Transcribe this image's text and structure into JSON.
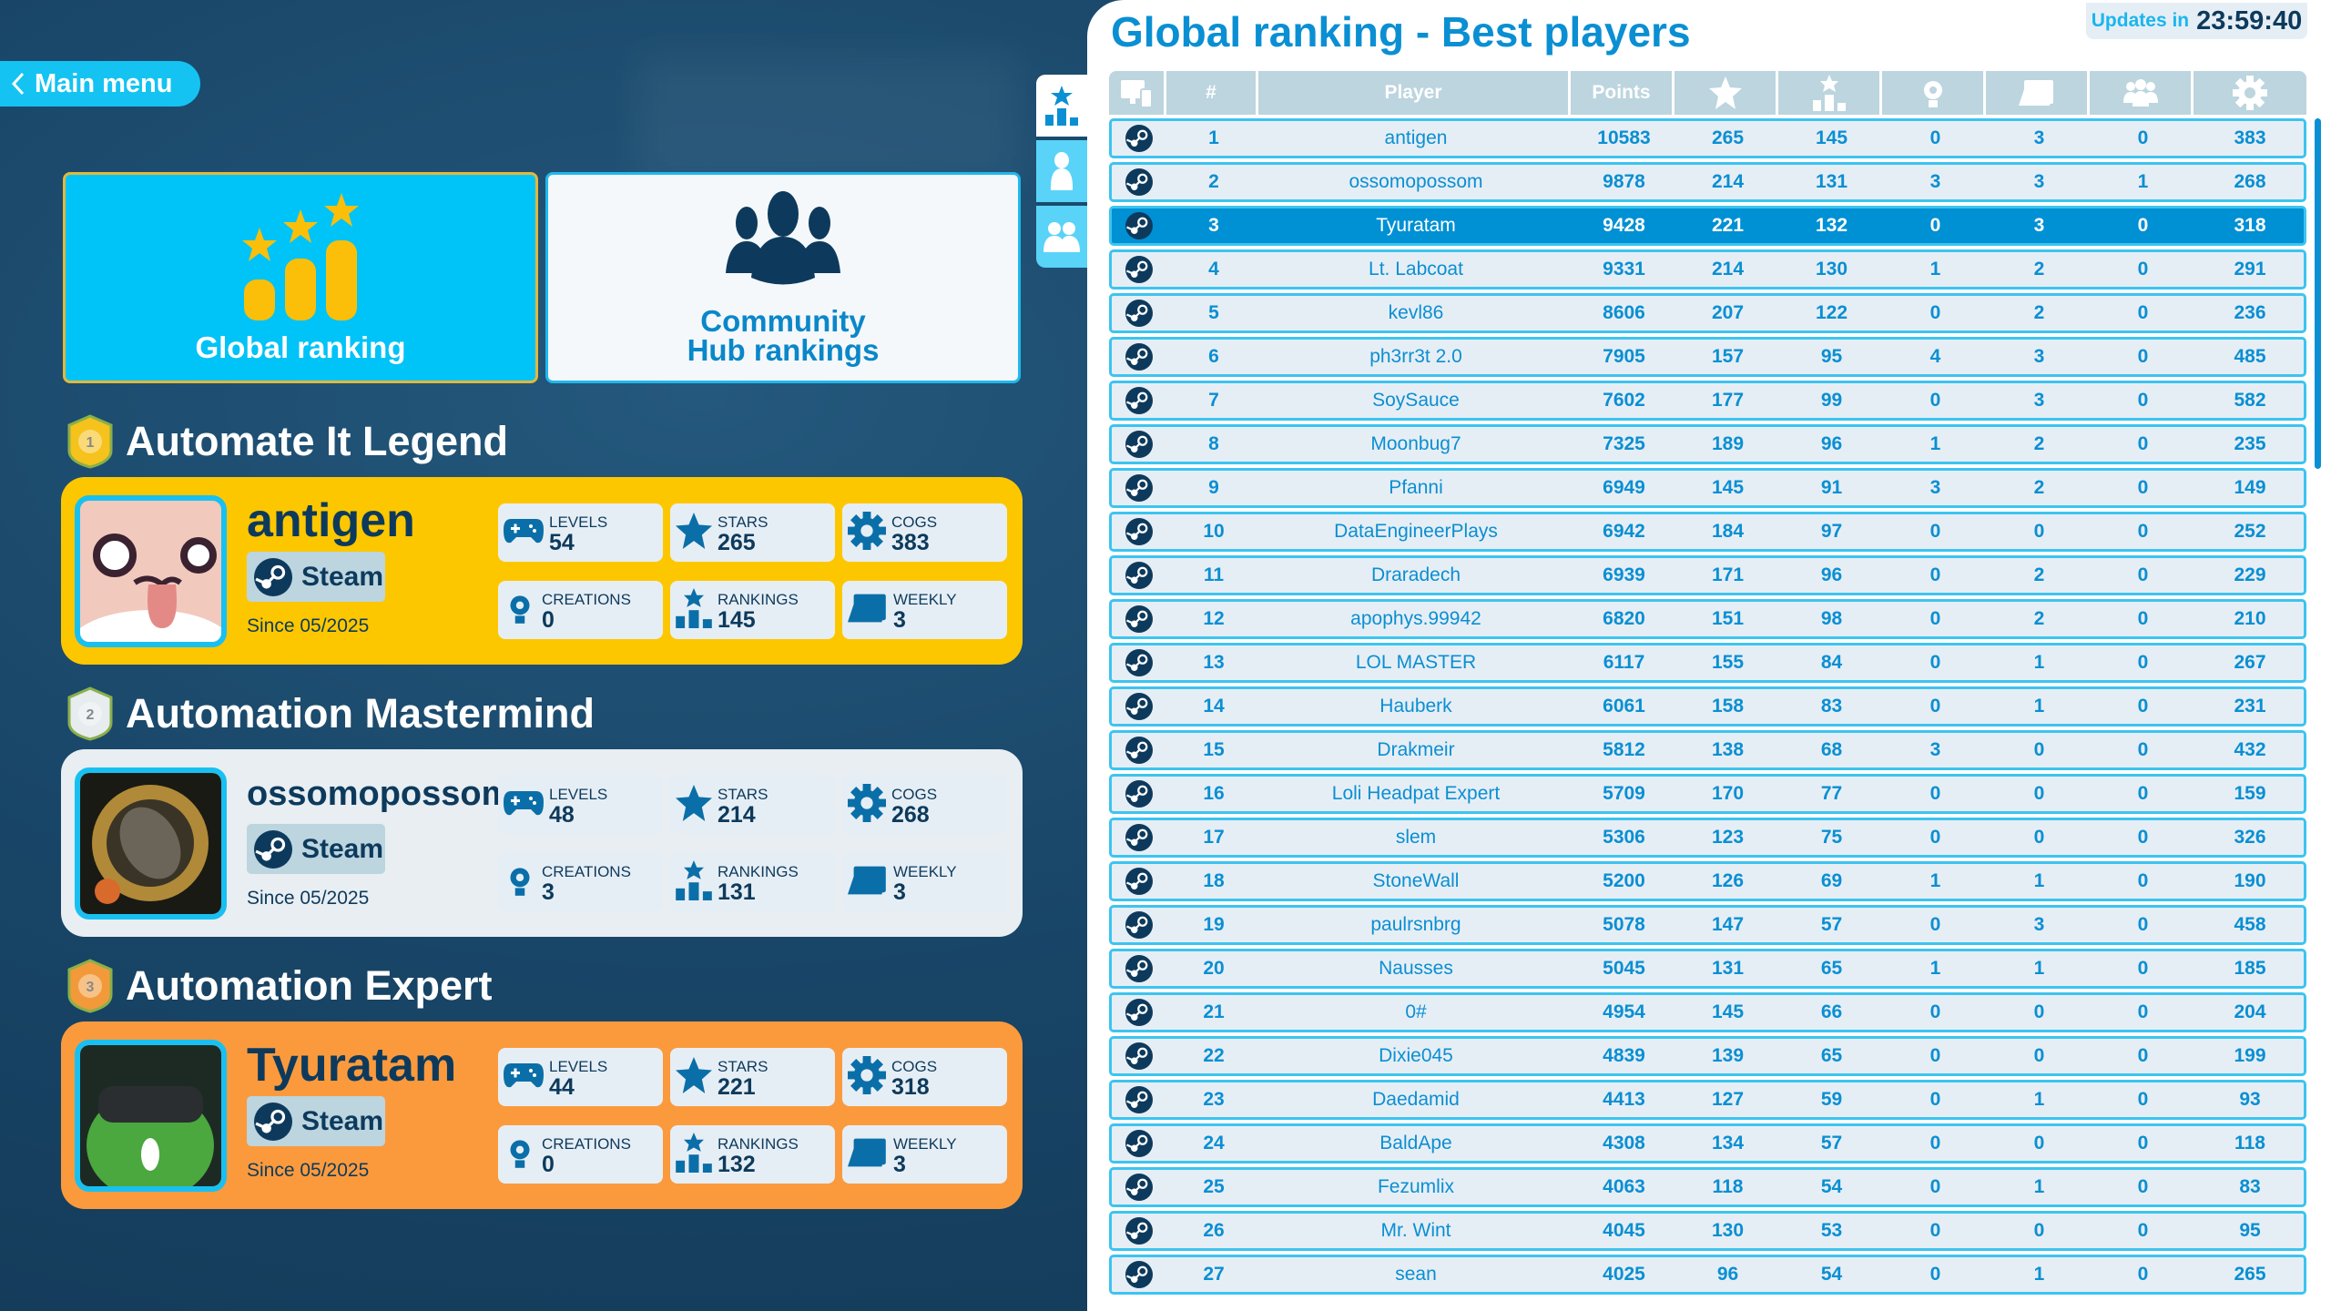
{
  "nav": {
    "main_menu": "Main menu"
  },
  "modes": {
    "global": "Global ranking",
    "community_line1": "Community",
    "community_line2": "Hub rankings"
  },
  "stat_labels": {
    "levels": "LEVELS",
    "stars": "STARS",
    "cogs": "COGS",
    "creations": "CREATIONS",
    "rankings": "RANKINGS",
    "weekly": "WEEKLY"
  },
  "podium": [
    {
      "tier": "Automate It Legend",
      "medal": "1",
      "name": "antigen",
      "platform": "Steam",
      "since": "Since 05/2025",
      "levels": "54",
      "stars": "265",
      "cogs": "383",
      "creations": "0",
      "rankings": "145",
      "weekly": "3",
      "color": "#fdc700"
    },
    {
      "tier": "Automation Mastermind",
      "medal": "2",
      "name": "ossomopossom",
      "platform": "Steam",
      "since": "Since 05/2025",
      "levels": "48",
      "stars": "214",
      "cogs": "268",
      "creations": "3",
      "rankings": "131",
      "weekly": "3",
      "color": "#e8eef2"
    },
    {
      "tier": "Automation Expert",
      "medal": "3",
      "name": "Tyuratam",
      "platform": "Steam",
      "since": "Since 05/2025",
      "levels": "44",
      "stars": "221",
      "cogs": "318",
      "creations": "0",
      "rankings": "132",
      "weekly": "3",
      "color": "#fb9a3d"
    }
  ],
  "panel": {
    "title": "Global ranking - Best players",
    "updates_label": "Updates in",
    "countdown": "23:59:40"
  },
  "table": {
    "headers": {
      "rank": "#",
      "player": "Player",
      "points": "Points"
    },
    "highlight_rank": 3,
    "rows": [
      [
        "1",
        "antigen",
        "10583",
        "265",
        "145",
        "0",
        "3",
        "0",
        "383"
      ],
      [
        "2",
        "ossomopossom",
        "9878",
        "214",
        "131",
        "3",
        "3",
        "1",
        "268"
      ],
      [
        "3",
        "Tyuratam",
        "9428",
        "221",
        "132",
        "0",
        "3",
        "0",
        "318"
      ],
      [
        "4",
        "Lt. Labcoat",
        "9331",
        "214",
        "130",
        "1",
        "2",
        "0",
        "291"
      ],
      [
        "5",
        "kevl86",
        "8606",
        "207",
        "122",
        "0",
        "2",
        "0",
        "236"
      ],
      [
        "6",
        "ph3rr3t 2.0",
        "7905",
        "157",
        "95",
        "4",
        "3",
        "0",
        "485"
      ],
      [
        "7",
        "SoySauce",
        "7602",
        "177",
        "99",
        "0",
        "3",
        "0",
        "582"
      ],
      [
        "8",
        "Moonbug7",
        "7325",
        "189",
        "96",
        "1",
        "2",
        "0",
        "235"
      ],
      [
        "9",
        "Pfanni",
        "6949",
        "145",
        "91",
        "3",
        "2",
        "0",
        "149"
      ],
      [
        "10",
        "DataEngineerPlays",
        "6942",
        "184",
        "97",
        "0",
        "0",
        "0",
        "252"
      ],
      [
        "11",
        "Draradech",
        "6939",
        "171",
        "96",
        "0",
        "2",
        "0",
        "229"
      ],
      [
        "12",
        "apophys.99942",
        "6820",
        "151",
        "98",
        "0",
        "2",
        "0",
        "210"
      ],
      [
        "13",
        "LOL MASTER",
        "6117",
        "155",
        "84",
        "0",
        "1",
        "0",
        "267"
      ],
      [
        "14",
        "Hauberk",
        "6061",
        "158",
        "83",
        "0",
        "1",
        "0",
        "231"
      ],
      [
        "15",
        "Drakmeir",
        "5812",
        "138",
        "68",
        "3",
        "0",
        "0",
        "432"
      ],
      [
        "16",
        "Loli Headpat Expert",
        "5709",
        "170",
        "77",
        "0",
        "0",
        "0",
        "159"
      ],
      [
        "17",
        "slem",
        "5306",
        "123",
        "75",
        "0",
        "0",
        "0",
        "326"
      ],
      [
        "18",
        "StoneWall",
        "5200",
        "126",
        "69",
        "1",
        "1",
        "0",
        "190"
      ],
      [
        "19",
        "paulrsnbrg",
        "5078",
        "147",
        "57",
        "0",
        "3",
        "0",
        "458"
      ],
      [
        "20",
        "Nausses",
        "5045",
        "131",
        "65",
        "1",
        "1",
        "0",
        "185"
      ],
      [
        "21",
        "0#",
        "4954",
        "145",
        "66",
        "0",
        "0",
        "0",
        "204"
      ],
      [
        "22",
        "Dixie045",
        "4839",
        "139",
        "65",
        "0",
        "0",
        "0",
        "199"
      ],
      [
        "23",
        "Daedamid",
        "4413",
        "127",
        "59",
        "0",
        "1",
        "0",
        "93"
      ],
      [
        "24",
        "BaldApe",
        "4308",
        "134",
        "57",
        "0",
        "0",
        "0",
        "118"
      ],
      [
        "25",
        "Fezumlix",
        "4063",
        "118",
        "54",
        "0",
        "1",
        "0",
        "83"
      ],
      [
        "26",
        "Mr. Wint",
        "4045",
        "130",
        "53",
        "0",
        "0",
        "0",
        "95"
      ],
      [
        "27",
        "sean",
        "4025",
        "96",
        "54",
        "0",
        "1",
        "0",
        "265"
      ]
    ]
  }
}
